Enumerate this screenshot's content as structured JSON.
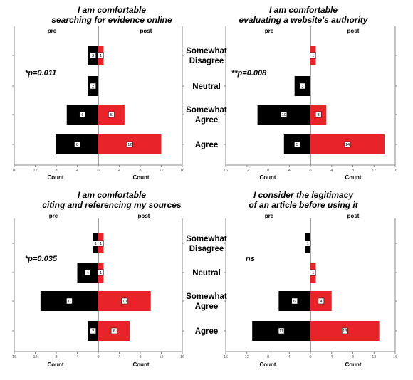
{
  "chart_data": [
    {
      "type": "bar",
      "orientation": "horizontal-back-to-back",
      "title_lines": [
        "I am comfortable",
        "searching for evidence online"
      ],
      "left_label": "pre",
      "right_label": "post",
      "xlabel_left": "Count",
      "xlabel_right": "Count",
      "stat": "*p=0.011",
      "categories": [
        "Somewhat Disagree",
        "Neutral",
        "Somewhat Agree",
        "Agree"
      ],
      "series": [
        {
          "name": "pre",
          "values": [
            2,
            2,
            6,
            8
          ]
        },
        {
          "name": "post",
          "values": [
            1,
            0,
            5,
            12
          ]
        }
      ],
      "xlim": [
        -16,
        16
      ],
      "xticks": [
        16,
        12,
        8,
        4,
        0,
        4,
        8,
        12,
        16
      ],
      "grid": false
    },
    {
      "type": "bar",
      "orientation": "horizontal-back-to-back",
      "title_lines": [
        "I am comfortable",
        "evaluating a website's authority"
      ],
      "left_label": "pre",
      "right_label": "post",
      "xlabel_left": "Count",
      "xlabel_right": "Count",
      "stat": "**p=0.008",
      "categories": [
        "Somewhat Disagree",
        "Neutral",
        "Somewhat Agree",
        "Agree"
      ],
      "series": [
        {
          "name": "pre",
          "values": [
            0,
            3,
            10,
            5
          ]
        },
        {
          "name": "post",
          "values": [
            1,
            0,
            3,
            14
          ]
        }
      ],
      "xlim": [
        -16,
        16
      ],
      "xticks": [
        16,
        12,
        8,
        4,
        0,
        4,
        8,
        12,
        16
      ],
      "grid": false
    },
    {
      "type": "bar",
      "orientation": "horizontal-back-to-back",
      "title_lines": [
        "I am comfortable",
        "citing and referencing my sources"
      ],
      "left_label": "pre",
      "right_label": "post",
      "xlabel_left": "Count",
      "xlabel_right": "Count",
      "stat": "*p=0.035",
      "categories": [
        "Somewhat Disagree",
        "Neutral",
        "Somewhat Agree",
        "Agree"
      ],
      "series": [
        {
          "name": "pre",
          "values": [
            1,
            4,
            11,
            2
          ]
        },
        {
          "name": "post",
          "values": [
            1,
            1,
            10,
            6
          ]
        }
      ],
      "xlim": [
        -16,
        16
      ],
      "xticks": [
        16,
        12,
        8,
        4,
        0,
        4,
        8,
        12,
        16
      ],
      "grid": false
    },
    {
      "type": "bar",
      "orientation": "horizontal-back-to-back",
      "title_lines": [
        "I consider the legitimacy",
        "of an article before using it"
      ],
      "left_label": "pre",
      "right_label": "post",
      "xlabel_left": "Count",
      "xlabel_right": "Count",
      "stat": "ns",
      "categories": [
        "Somewhat Disagree",
        "Neutral",
        "Somewhat Agree",
        "Agree"
      ],
      "series": [
        {
          "name": "pre",
          "values": [
            1,
            0,
            6,
            11
          ]
        },
        {
          "name": "post",
          "values": [
            0,
            1,
            4,
            13
          ]
        }
      ],
      "xlim": [
        -16,
        16
      ],
      "xticks": [
        16,
        12,
        8,
        4,
        0,
        4,
        8,
        12,
        16
      ],
      "grid": false
    }
  ],
  "category_labels": [
    [
      "Somewhat",
      "Disagree"
    ],
    [
      "Neutral"
    ],
    [
      "Somewhat",
      "Agree"
    ],
    [
      "Agree"
    ]
  ],
  "colors": {
    "pre": "#000000",
    "post": "#e8242a",
    "value_box": "#ffffff",
    "axis": "#888888",
    "text": "#000000"
  }
}
